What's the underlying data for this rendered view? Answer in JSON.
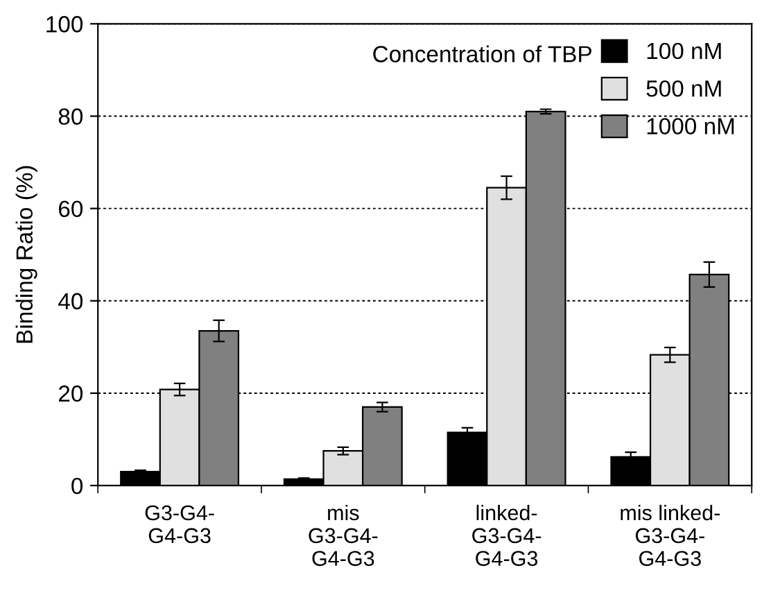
{
  "chart_data": {
    "type": "bar",
    "ylabel": "Binding Ratio (%)",
    "legend_title": "Concentration of TBP",
    "categories": [
      "G3-G4-\nG4-G3",
      "mis\nG3-G4-\nG4-G3",
      "linked-\nG3-G4-\nG4-G3",
      "mis linked-\nG3-G4-\nG4-G3"
    ],
    "series": [
      {
        "name": "100 nM",
        "color": "#000000",
        "values": [
          3,
          1.4,
          11.5,
          6.2
        ],
        "errors": [
          0.3,
          0.2,
          1,
          1
        ]
      },
      {
        "name": "500 nM",
        "color": "#e0e0e0",
        "values": [
          20.8,
          7.5,
          64.5,
          28.3
        ],
        "errors": [
          1.3,
          0.8,
          2.5,
          1.6
        ]
      },
      {
        "name": "1000 nM",
        "color": "#808080",
        "values": [
          33.5,
          17,
          81,
          45.7
        ],
        "errors": [
          2.3,
          1,
          0.5,
          2.7
        ]
      }
    ],
    "ylim": [
      0,
      100
    ],
    "yticks": [
      0,
      20,
      40,
      60,
      80,
      100
    ],
    "grid": "y",
    "legend": "top right"
  }
}
